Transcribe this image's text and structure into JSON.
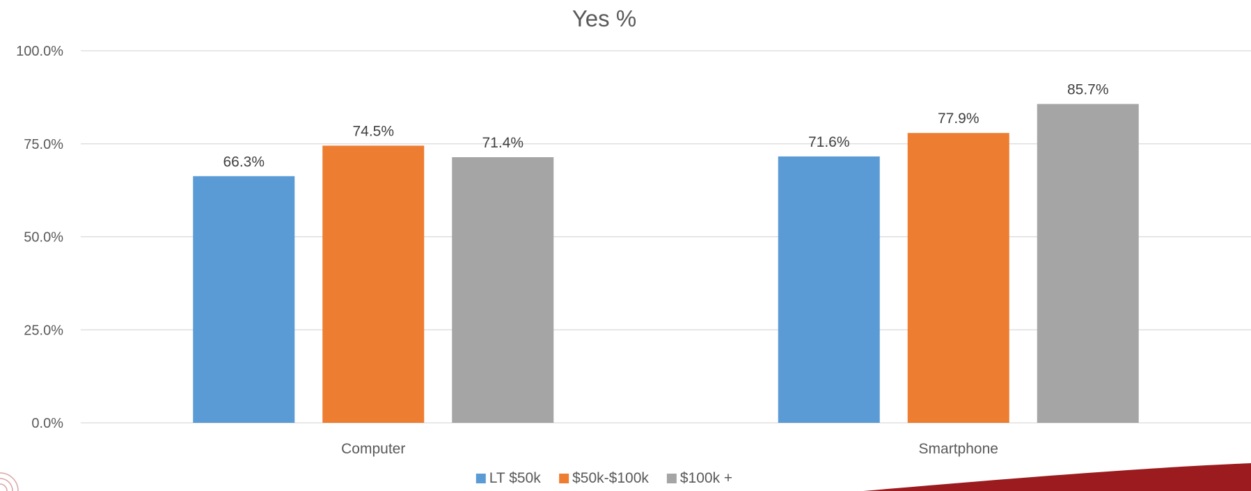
{
  "chart_data": {
    "type": "bar",
    "title": "Yes %",
    "categories": [
      "Computer",
      "Smartphone"
    ],
    "series": [
      {
        "name": "LT $50k",
        "values": [
          66.3,
          71.6
        ],
        "color": "#5b9bd5"
      },
      {
        "name": "$50k-$100k",
        "values": [
          74.5,
          77.9
        ],
        "color": "#ed7d31"
      },
      {
        "name": "$100k +",
        "values": [
          71.4,
          85.7
        ],
        "color": "#a5a5a5"
      }
    ],
    "ylim": [
      0,
      100
    ],
    "yticks": [
      "0.0%",
      "25.0%",
      "50.0%",
      "75.0%",
      "100.0%"
    ],
    "data_labels": [
      [
        "66.3%",
        "71.6%"
      ],
      [
        "74.5%",
        "77.9%"
      ],
      [
        "71.4%",
        "85.7%"
      ]
    ],
    "grid": true,
    "legend_position": "bottom"
  },
  "decor": {
    "accent_color": "#9b1b1e"
  }
}
